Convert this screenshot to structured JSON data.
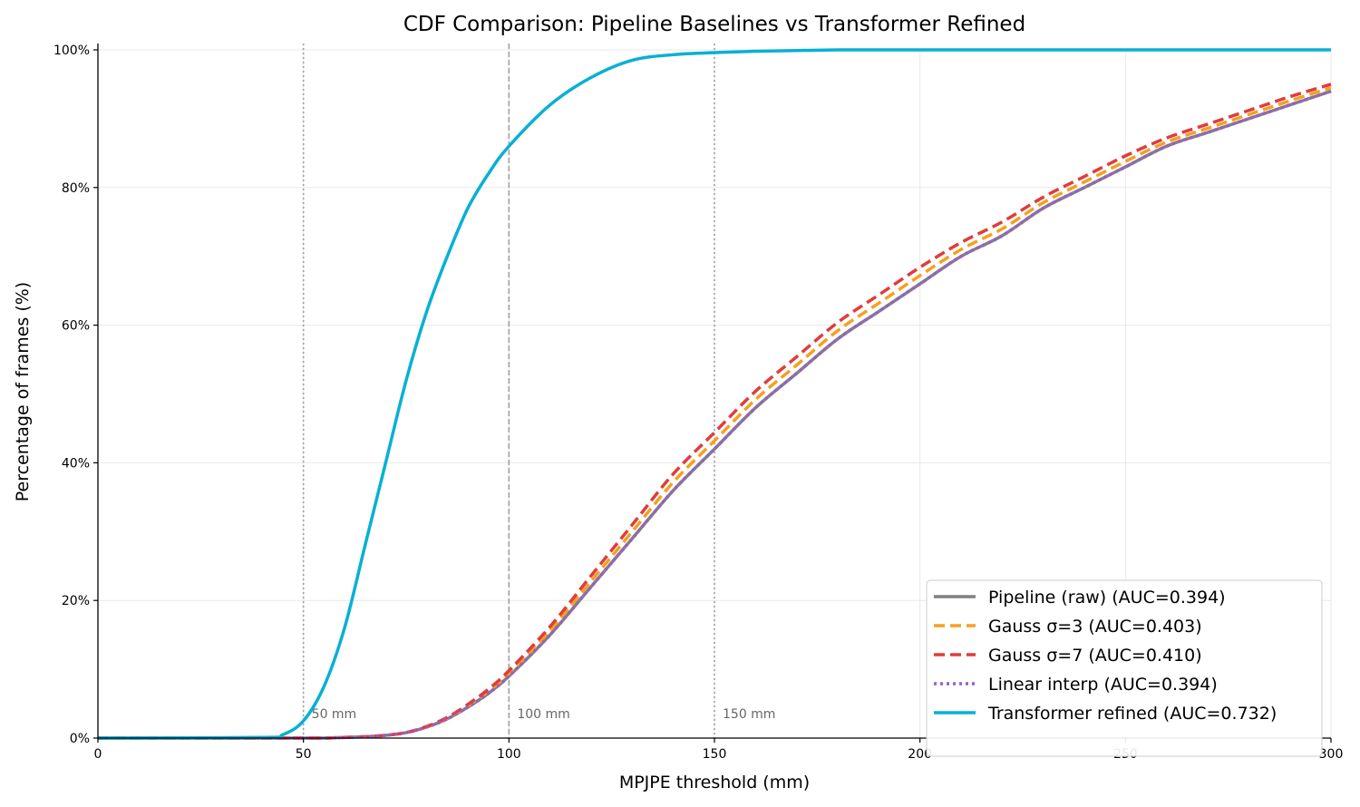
{
  "chart_data": {
    "type": "line",
    "title": "CDF Comparison: Pipeline Baselines vs Transformer Refined",
    "xlabel": "MPJPE threshold (mm)",
    "ylabel": "Percentage of frames (%)",
    "xlim": [
      0,
      300
    ],
    "ylim": [
      0,
      100
    ],
    "xticks": [
      0,
      50,
      100,
      150,
      200,
      250,
      300
    ],
    "yticks": [
      0,
      20,
      40,
      60,
      80,
      100
    ],
    "ytick_labels": [
      "0%",
      "20%",
      "40%",
      "60%",
      "80%",
      "100%"
    ],
    "grid": true,
    "legend_position": "lower-right",
    "reference_lines": [
      {
        "x": 50,
        "label": "50 mm",
        "style": "dotted"
      },
      {
        "x": 100,
        "label": "100 mm",
        "style": "dashed"
      },
      {
        "x": 150,
        "label": "150 mm",
        "style": "dotted"
      }
    ],
    "x": [
      0,
      40,
      45,
      50,
      55,
      60,
      65,
      70,
      75,
      80,
      85,
      90,
      95,
      100,
      110,
      120,
      130,
      140,
      150,
      160,
      170,
      180,
      190,
      200,
      210,
      220,
      230,
      240,
      250,
      260,
      270,
      280,
      290,
      300
    ],
    "series": [
      {
        "name": "Pipeline (raw)  (AUC=0.394)",
        "color": "#808080",
        "style": "solid",
        "values": [
          0,
          0,
          0,
          0,
          0,
          0.1,
          0.2,
          0.4,
          0.8,
          1.6,
          2.8,
          4.5,
          6.5,
          9,
          15,
          22,
          29,
          36,
          42,
          48,
          53,
          58,
          62,
          66,
          70,
          73,
          77,
          80,
          83,
          86,
          88,
          90,
          92,
          94
        ]
      },
      {
        "name": "Gauss σ=3  (AUC=0.403)",
        "color": "#f5a020",
        "style": "dashed",
        "values": [
          0,
          0,
          0,
          0,
          0,
          0.1,
          0.2,
          0.4,
          0.8,
          1.6,
          2.9,
          4.7,
          6.8,
          9.4,
          15.6,
          22.8,
          30,
          37.2,
          43.2,
          49.2,
          54.2,
          59.2,
          63.2,
          67.2,
          71,
          74,
          77.8,
          80.8,
          83.8,
          86.6,
          88.6,
          90.6,
          92.6,
          94.5
        ]
      },
      {
        "name": "Gauss σ=7  (AUC=0.410)",
        "color": "#e03c3c",
        "style": "dashed",
        "values": [
          0,
          0,
          0,
          0,
          0,
          0.1,
          0.2,
          0.4,
          0.8,
          1.7,
          3,
          4.9,
          7.1,
          9.8,
          16.2,
          23.6,
          31,
          38.4,
          44.4,
          50.4,
          55.4,
          60.4,
          64.4,
          68.4,
          72,
          75,
          78.6,
          81.6,
          84.6,
          87.2,
          89.2,
          91.2,
          93.2,
          95
        ]
      },
      {
        "name": "Linear interp  (AUC=0.394)",
        "color": "#9b59d6",
        "style": "dotted",
        "values": [
          0,
          0,
          0,
          0,
          0,
          0.1,
          0.2,
          0.4,
          0.8,
          1.6,
          2.8,
          4.5,
          6.5,
          9,
          15,
          22,
          29,
          36,
          42,
          48,
          53,
          58,
          62,
          66,
          70,
          73,
          77,
          80,
          83,
          86,
          88,
          90,
          92,
          94
        ]
      },
      {
        "name": "Transformer refined  (AUC=0.732)",
        "color": "#08b0d4",
        "style": "solid",
        "values": [
          0,
          0.1,
          0.5,
          2.5,
          7.5,
          16,
          28,
          40,
          52,
          62,
          70,
          77,
          82,
          86,
          92,
          96,
          98.5,
          99.3,
          99.6,
          99.8,
          99.9,
          100,
          100,
          100,
          100,
          100,
          100,
          100,
          100,
          100,
          100,
          100,
          100,
          100
        ]
      }
    ]
  }
}
